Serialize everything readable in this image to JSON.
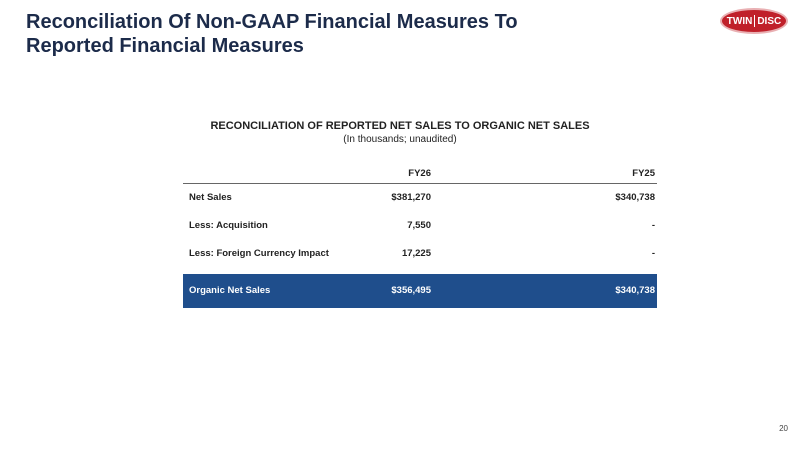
{
  "header": {
    "title": [
      "Reconciliation Of Non-GAAP Financial Measures To",
      "Reported Financial Measures"
    ],
    "logo": [
      "TWIN",
      "DISC"
    ]
  },
  "table": {
    "title": "RECONCILIATION OF REPORTED NET SALES TO ORGANIC NET SALES",
    "note": "(In thousands; unaudited)",
    "columns": [
      "FY26",
      "FY25"
    ],
    "rows": [
      [
        "Net Sales",
        "$381,270",
        "$340,738"
      ],
      [
        "Less: Acquisition",
        "7,550",
        "-"
      ],
      [
        "Less: Foreign Currency Impact",
        "17,225",
        "-"
      ],
      [
        "Organic Net Sales",
        "$356,495",
        "$340,738"
      ]
    ]
  },
  "footer": {
    "page": "20"
  }
}
